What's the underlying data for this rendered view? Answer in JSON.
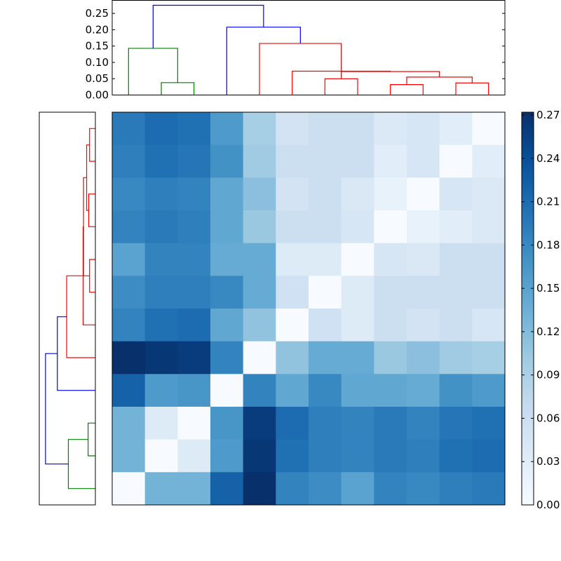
{
  "chart_data": [
    {
      "type": "dendrogram",
      "title": "",
      "orientation": "top",
      "ylim": [
        0,
        0.29
      ],
      "yticks": [
        0,
        0.05,
        0.1,
        0.15,
        0.2,
        0.25
      ],
      "ytick_labels": [
        "0.00",
        "0.05",
        "0.10",
        "0.15",
        "0.20",
        "0.25"
      ],
      "links": [
        {
          "left_x": 6.5,
          "right_x": 7.5,
          "height": 0.05,
          "left_child_height": 0,
          "right_child_height": 0,
          "color": "#ff0000"
        },
        {
          "left_x": 8.5,
          "right_x": 9.5,
          "height": 0.032,
          "left_child_height": 0,
          "right_child_height": 0,
          "color": "#ff0000"
        },
        {
          "left_x": 10.5,
          "right_x": 11.5,
          "height": 0.037,
          "left_child_height": 0,
          "right_child_height": 0,
          "color": "#ff0000"
        },
        {
          "left_x": 9.0,
          "right_x": 11.0,
          "height": 0.055,
          "left_child_height": 0.032,
          "right_child_height": 0.037,
          "color": "#ff0000"
        },
        {
          "left_x": 7.0,
          "right_x": 10.0,
          "height": 0.072,
          "left_child_height": 0.05,
          "right_child_height": 0.055,
          "color": "#ff0000"
        },
        {
          "left_x": 5.5,
          "right_x": 8.5,
          "height": 0.073,
          "left_child_height": 0,
          "right_child_height": 0.072,
          "color": "#ff0000"
        },
        {
          "left_x": 4.5,
          "right_x": 7.0,
          "height": 0.158,
          "left_child_height": 0,
          "right_child_height": 0.073,
          "color": "#ff0000"
        },
        {
          "left_x": 3.5,
          "right_x": 5.75,
          "height": 0.208,
          "left_child_height": 0,
          "right_child_height": 0.158,
          "color": "#0000ff"
        },
        {
          "left_x": 1.5,
          "right_x": 2.5,
          "height": 0.038,
          "left_child_height": 0,
          "right_child_height": 0,
          "color": "#008000"
        },
        {
          "left_x": 0.5,
          "right_x": 2.0,
          "height": 0.143,
          "left_child_height": 0,
          "right_child_height": 0.038,
          "color": "#008000"
        },
        {
          "left_x": 1.25,
          "right_x": 4.625,
          "height": 0.275,
          "left_child_height": 0.143,
          "right_child_height": 0.208,
          "color": "#0000ff"
        }
      ]
    },
    {
      "type": "dendrogram",
      "title": "",
      "orientation": "left",
      "links": [
        {
          "a": 0.5,
          "b": 1.5,
          "height": 0.028,
          "ha": 0,
          "hb": 0,
          "color": "#ff0000"
        },
        {
          "a": 2.5,
          "b": 3.5,
          "height": 0.032,
          "ha": 0,
          "hb": 0,
          "color": "#ff0000"
        },
        {
          "a": 1.0,
          "b": 3.0,
          "height": 0.042,
          "ha": 0.028,
          "hb": 0.032,
          "color": "#ff0000"
        },
        {
          "a": 4.5,
          "b": 5.5,
          "height": 0.028,
          "ha": 0,
          "hb": 0,
          "color": "#ff0000"
        },
        {
          "a": 2.0,
          "b": 5.0,
          "height": 0.057,
          "ha": 0.042,
          "hb": 0.028,
          "color": "#ff0000"
        },
        {
          "a": 3.5,
          "b": 6.5,
          "height": 0.059,
          "ha": 0.057,
          "hb": 0,
          "color": "#ff0000"
        },
        {
          "a": 5.0,
          "b": 7.5,
          "height": 0.138,
          "ha": 0.059,
          "hb": 0,
          "color": "#ff0000"
        },
        {
          "a": 6.25,
          "b": 8.5,
          "height": 0.183,
          "ha": 0.138,
          "hb": 0,
          "color": "#0000ff"
        },
        {
          "a": 9.5,
          "b": 10.5,
          "height": 0.035,
          "ha": 0,
          "hb": 0,
          "color": "#008000"
        },
        {
          "a": 10.0,
          "b": 11.5,
          "height": 0.13,
          "ha": 0.035,
          "hb": 0,
          "color": "#008000"
        },
        {
          "a": 7.375,
          "b": 10.75,
          "height": 0.24,
          "ha": 0.183,
          "hb": 0.13,
          "color": "#0000ff"
        }
      ],
      "xlim": [
        0.27,
        0
      ]
    },
    {
      "type": "heatmap",
      "title": "",
      "colormap": "Blues",
      "vmin": 0,
      "vmax": 0.272,
      "rows": 12,
      "cols": 12,
      "values": [
        [
          0.195,
          0.21,
          0.205,
          0.16,
          0.095,
          0.05,
          0.06,
          0.06,
          0.038,
          0.045,
          0.03,
          0.0
        ],
        [
          0.19,
          0.205,
          0.2,
          0.17,
          0.1,
          0.06,
          0.06,
          0.06,
          0.03,
          0.045,
          0.0,
          0.03
        ],
        [
          0.18,
          0.19,
          0.185,
          0.145,
          0.115,
          0.05,
          0.06,
          0.04,
          0.02,
          0.0,
          0.045,
          0.038
        ],
        [
          0.185,
          0.195,
          0.19,
          0.145,
          0.105,
          0.06,
          0.06,
          0.045,
          0.0,
          0.02,
          0.03,
          0.038
        ],
        [
          0.15,
          0.185,
          0.185,
          0.14,
          0.14,
          0.035,
          0.035,
          0.0,
          0.045,
          0.04,
          0.06,
          0.06
        ],
        [
          0.175,
          0.19,
          0.19,
          0.18,
          0.14,
          0.055,
          0.0,
          0.035,
          0.06,
          0.06,
          0.06,
          0.06
        ],
        [
          0.185,
          0.205,
          0.21,
          0.145,
          0.11,
          0.0,
          0.055,
          0.035,
          0.06,
          0.05,
          0.06,
          0.045
        ],
        [
          0.272,
          0.265,
          0.26,
          0.185,
          0.0,
          0.11,
          0.14,
          0.14,
          0.105,
          0.115,
          0.1,
          0.095
        ],
        [
          0.22,
          0.16,
          0.165,
          0.0,
          0.185,
          0.145,
          0.18,
          0.145,
          0.145,
          0.14,
          0.17,
          0.16
        ],
        [
          0.13,
          0.035,
          0.0,
          0.165,
          0.26,
          0.21,
          0.19,
          0.185,
          0.195,
          0.185,
          0.2,
          0.205
        ],
        [
          0.13,
          0.0,
          0.035,
          0.16,
          0.265,
          0.205,
          0.19,
          0.185,
          0.195,
          0.19,
          0.205,
          0.21
        ],
        [
          0.0,
          0.13,
          0.13,
          0.22,
          0.272,
          0.185,
          0.175,
          0.15,
          0.185,
          0.18,
          0.19,
          0.195
        ]
      ],
      "colorbar": {
        "ticks": [
          0.0,
          0.03,
          0.06,
          0.09,
          0.12,
          0.15,
          0.18,
          0.21,
          0.24,
          0.27
        ],
        "tick_labels": [
          "0.00",
          "0.03",
          "0.06",
          "0.09",
          "0.12",
          "0.15",
          "0.18",
          "0.21",
          "0.24",
          "0.27"
        ]
      }
    }
  ]
}
